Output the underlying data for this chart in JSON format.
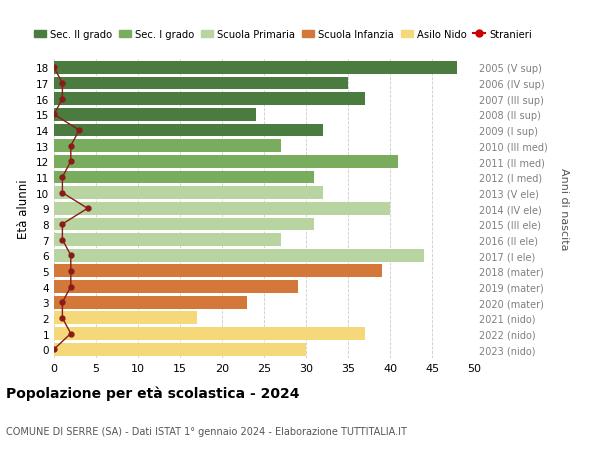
{
  "ages": [
    18,
    17,
    16,
    15,
    14,
    13,
    12,
    11,
    10,
    9,
    8,
    7,
    6,
    5,
    4,
    3,
    2,
    1,
    0
  ],
  "bar_values": [
    48,
    35,
    37,
    24,
    32,
    27,
    41,
    31,
    32,
    40,
    31,
    27,
    44,
    39,
    29,
    23,
    17,
    37,
    30
  ],
  "bar_colors": [
    "#4a7c3f",
    "#4a7c3f",
    "#4a7c3f",
    "#4a7c3f",
    "#4a7c3f",
    "#7aac5e",
    "#7aac5e",
    "#7aac5e",
    "#b8d4a0",
    "#b8d4a0",
    "#b8d4a0",
    "#b8d4a0",
    "#b8d4a0",
    "#d4783a",
    "#d4783a",
    "#d4783a",
    "#f5d87a",
    "#f5d87a",
    "#f5d87a"
  ],
  "stranieri_values": [
    0,
    1,
    1,
    0,
    3,
    2,
    2,
    1,
    1,
    4,
    1,
    1,
    2,
    2,
    2,
    1,
    1,
    2,
    0
  ],
  "stranieri_color": "#8b1a1a",
  "right_labels": [
    "2005 (V sup)",
    "2006 (IV sup)",
    "2007 (III sup)",
    "2008 (II sup)",
    "2009 (I sup)",
    "2010 (III med)",
    "2011 (II med)",
    "2012 (I med)",
    "2013 (V ele)",
    "2014 (IV ele)",
    "2015 (III ele)",
    "2016 (II ele)",
    "2017 (I ele)",
    "2018 (mater)",
    "2019 (mater)",
    "2020 (mater)",
    "2021 (nido)",
    "2022 (nido)",
    "2023 (nido)"
  ],
  "right_label_color": "#808080",
  "anni_label": "Anni di nascita",
  "ylabel": "Età alunni",
  "xlim": [
    0,
    50
  ],
  "xticks": [
    0,
    5,
    10,
    15,
    20,
    25,
    30,
    35,
    40,
    45,
    50
  ],
  "title_main": "Popolazione per età scolastica - 2024",
  "title_sub": "COMUNE DI SERRE (SA) - Dati ISTAT 1° gennaio 2024 - Elaborazione TUTTITALIA.IT",
  "legend_items": [
    {
      "label": "Sec. II grado",
      "color": "#4a7c3f",
      "type": "patch"
    },
    {
      "label": "Sec. I grado",
      "color": "#7aac5e",
      "type": "patch"
    },
    {
      "label": "Scuola Primaria",
      "color": "#b8d4a0",
      "type": "patch"
    },
    {
      "label": "Scuola Infanzia",
      "color": "#d4783a",
      "type": "patch"
    },
    {
      "label": "Asilo Nido",
      "color": "#f5d87a",
      "type": "patch"
    },
    {
      "label": "Stranieri",
      "color": "#cc0000",
      "type": "line"
    }
  ],
  "background_color": "#ffffff",
  "grid_color": "#cccccc"
}
